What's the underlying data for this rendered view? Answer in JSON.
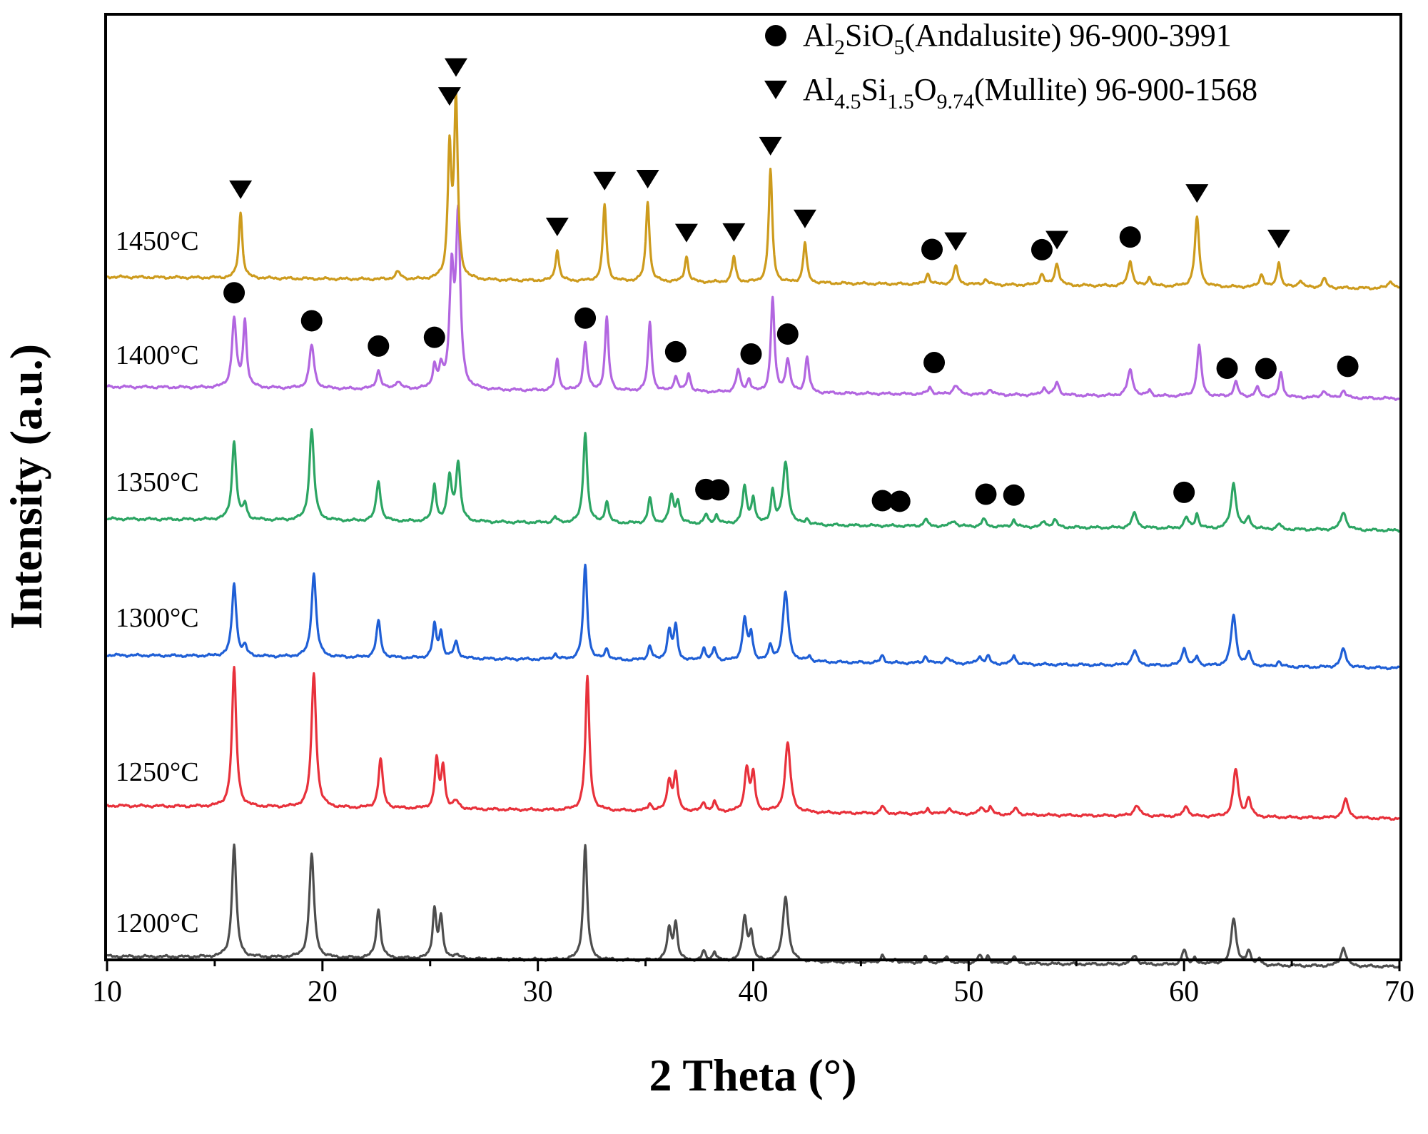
{
  "chart_data": {
    "type": "line",
    "title": "",
    "xlabel": "2 Theta (°)",
    "ylabel": "Intensity (a.u.)",
    "xlim": [
      10,
      70
    ],
    "xticks": [
      10,
      20,
      30,
      40,
      50,
      60,
      70
    ],
    "grid": false,
    "legend_position": "top-right",
    "legend": [
      {
        "marker": "circle",
        "parts": [
          [
            "Al",
            ""
          ],
          [
            "2",
            "sub"
          ],
          [
            "SiO",
            ""
          ],
          [
            "5",
            "sub"
          ],
          [
            "(Andalusite) 96-900-3991",
            ""
          ]
        ]
      },
      {
        "marker": "triangle-down",
        "parts": [
          [
            "Al",
            ""
          ],
          [
            "4.5",
            "sub"
          ],
          [
            "Si",
            ""
          ],
          [
            "1.5",
            "sub"
          ],
          [
            "O",
            ""
          ],
          [
            "9.74",
            "sub"
          ],
          [
            "(Mullite) 96-900-1568",
            ""
          ]
        ]
      }
    ],
    "series": [
      {
        "name": "1200°C",
        "color": "#4d4d4d",
        "offset": 0,
        "peaks": [
          [
            15.9,
            0.62,
            0.12
          ],
          [
            19.5,
            0.57,
            0.13
          ],
          [
            22.6,
            0.27,
            0.12
          ],
          [
            25.2,
            0.27,
            0.1
          ],
          [
            25.5,
            0.22,
            0.1
          ],
          [
            26.2,
            0.02,
            0.2
          ],
          [
            32.2,
            0.63,
            0.11
          ],
          [
            36.1,
            0.17,
            0.12
          ],
          [
            36.4,
            0.2,
            0.1
          ],
          [
            37.7,
            0.05,
            0.1
          ],
          [
            38.2,
            0.05,
            0.1
          ],
          [
            39.6,
            0.24,
            0.12
          ],
          [
            39.9,
            0.15,
            0.1
          ],
          [
            41.5,
            0.36,
            0.15
          ],
          [
            46.0,
            0.04,
            0.1
          ],
          [
            46.6,
            0.02,
            0.1
          ],
          [
            48.0,
            0.03,
            0.1
          ],
          [
            49.0,
            0.03,
            0.15
          ],
          [
            50.5,
            0.04,
            0.12
          ],
          [
            50.9,
            0.04,
            0.1
          ],
          [
            52.1,
            0.04,
            0.1
          ],
          [
            57.7,
            0.05,
            0.15
          ],
          [
            60.0,
            0.08,
            0.12
          ],
          [
            60.5,
            0.04,
            0.1
          ],
          [
            61.3,
            0.02,
            0.1
          ],
          [
            62.3,
            0.26,
            0.14
          ],
          [
            63.0,
            0.08,
            0.12
          ],
          [
            63.5,
            0.03,
            0.1
          ],
          [
            67.4,
            0.1,
            0.15
          ]
        ]
      },
      {
        "name": "1250°C",
        "color": "#e8313b",
        "offset": 1,
        "peaks": [
          [
            15.9,
            0.76,
            0.12
          ],
          [
            19.6,
            0.74,
            0.13
          ],
          [
            22.7,
            0.27,
            0.12
          ],
          [
            25.3,
            0.27,
            0.1
          ],
          [
            25.6,
            0.23,
            0.1
          ],
          [
            26.2,
            0.04,
            0.15
          ],
          [
            32.3,
            0.73,
            0.11
          ],
          [
            35.2,
            0.04,
            0.1
          ],
          [
            36.1,
            0.17,
            0.12
          ],
          [
            36.4,
            0.2,
            0.1
          ],
          [
            37.7,
            0.05,
            0.1
          ],
          [
            38.2,
            0.05,
            0.1
          ],
          [
            39.7,
            0.24,
            0.12
          ],
          [
            40.0,
            0.2,
            0.1
          ],
          [
            41.6,
            0.38,
            0.15
          ],
          [
            46.0,
            0.04,
            0.1
          ],
          [
            48.1,
            0.03,
            0.1
          ],
          [
            49.1,
            0.03,
            0.15
          ],
          [
            50.6,
            0.04,
            0.12
          ],
          [
            51.0,
            0.04,
            0.1
          ],
          [
            52.2,
            0.04,
            0.1
          ],
          [
            57.8,
            0.06,
            0.15
          ],
          [
            60.1,
            0.06,
            0.12
          ],
          [
            62.4,
            0.26,
            0.14
          ],
          [
            63.0,
            0.1,
            0.12
          ],
          [
            67.5,
            0.1,
            0.15
          ]
        ]
      },
      {
        "name": "1300°C",
        "color": "#1f5fd6",
        "offset": 2,
        "peaks": [
          [
            15.9,
            0.4,
            0.12
          ],
          [
            16.4,
            0.05,
            0.1
          ],
          [
            19.6,
            0.46,
            0.13
          ],
          [
            22.6,
            0.2,
            0.12
          ],
          [
            25.2,
            0.18,
            0.1
          ],
          [
            25.5,
            0.14,
            0.1
          ],
          [
            26.2,
            0.09,
            0.12
          ],
          [
            30.8,
            0.03,
            0.1
          ],
          [
            32.2,
            0.52,
            0.11
          ],
          [
            33.2,
            0.06,
            0.1
          ],
          [
            35.2,
            0.08,
            0.1
          ],
          [
            36.1,
            0.16,
            0.12
          ],
          [
            36.4,
            0.18,
            0.1
          ],
          [
            37.7,
            0.07,
            0.1
          ],
          [
            38.2,
            0.07,
            0.1
          ],
          [
            39.6,
            0.23,
            0.12
          ],
          [
            39.9,
            0.14,
            0.1
          ],
          [
            40.8,
            0.08,
            0.1
          ],
          [
            41.5,
            0.38,
            0.15
          ],
          [
            42.6,
            0.03,
            0.1
          ],
          [
            46.0,
            0.04,
            0.1
          ],
          [
            48.0,
            0.04,
            0.1
          ],
          [
            49.0,
            0.03,
            0.15
          ],
          [
            50.5,
            0.04,
            0.12
          ],
          [
            50.9,
            0.04,
            0.1
          ],
          [
            52.1,
            0.05,
            0.1
          ],
          [
            57.7,
            0.08,
            0.15
          ],
          [
            60.0,
            0.1,
            0.12
          ],
          [
            60.6,
            0.05,
            0.1
          ],
          [
            62.3,
            0.28,
            0.14
          ],
          [
            63.0,
            0.07,
            0.12
          ],
          [
            64.4,
            0.03,
            0.1
          ],
          [
            67.4,
            0.1,
            0.15
          ]
        ]
      },
      {
        "name": "1350°C",
        "color": "#2ca563",
        "offset": 3,
        "peaks": [
          [
            15.9,
            0.43,
            0.12
          ],
          [
            16.4,
            0.08,
            0.1
          ],
          [
            19.5,
            0.5,
            0.13
          ],
          [
            22.6,
            0.22,
            0.12
          ],
          [
            25.2,
            0.2,
            0.1
          ],
          [
            25.9,
            0.24,
            0.12
          ],
          [
            26.3,
            0.32,
            0.12
          ],
          [
            30.8,
            0.03,
            0.1
          ],
          [
            32.2,
            0.5,
            0.11
          ],
          [
            33.2,
            0.12,
            0.1
          ],
          [
            35.2,
            0.14,
            0.1
          ],
          [
            36.2,
            0.15,
            0.12
          ],
          [
            36.5,
            0.12,
            0.1
          ],
          [
            37.8,
            0.05,
            0.1
          ],
          [
            38.3,
            0.05,
            0.1
          ],
          [
            39.6,
            0.2,
            0.12
          ],
          [
            40.0,
            0.14,
            0.1
          ],
          [
            40.9,
            0.18,
            0.1
          ],
          [
            41.5,
            0.34,
            0.15
          ],
          [
            42.5,
            0.03,
            0.1
          ],
          [
            48.0,
            0.04,
            0.1
          ],
          [
            49.3,
            0.03,
            0.15
          ],
          [
            50.7,
            0.04,
            0.12
          ],
          [
            52.1,
            0.04,
            0.1
          ],
          [
            53.5,
            0.03,
            0.12
          ],
          [
            54.0,
            0.04,
            0.12
          ],
          [
            57.7,
            0.08,
            0.15
          ],
          [
            60.1,
            0.06,
            0.12
          ],
          [
            60.6,
            0.08,
            0.1
          ],
          [
            62.3,
            0.25,
            0.14
          ],
          [
            63.0,
            0.06,
            0.12
          ],
          [
            64.4,
            0.03,
            0.1
          ],
          [
            67.4,
            0.1,
            0.15
          ]
        ]
      },
      {
        "name": "1400°C",
        "color": "#b266e0",
        "offset": 4,
        "peaks": [
          [
            15.9,
            0.38,
            0.12
          ],
          [
            16.4,
            0.36,
            0.1
          ],
          [
            19.5,
            0.24,
            0.13
          ],
          [
            22.6,
            0.1,
            0.12
          ],
          [
            23.5,
            0.04,
            0.15
          ],
          [
            25.2,
            0.12,
            0.1
          ],
          [
            25.5,
            0.1,
            0.1
          ],
          [
            26.0,
            0.62,
            0.12
          ],
          [
            26.3,
            0.92,
            0.12
          ],
          [
            30.9,
            0.17,
            0.1
          ],
          [
            32.2,
            0.26,
            0.11
          ],
          [
            33.2,
            0.4,
            0.1
          ],
          [
            35.2,
            0.38,
            0.1
          ],
          [
            36.4,
            0.08,
            0.12
          ],
          [
            37.0,
            0.1,
            0.1
          ],
          [
            39.3,
            0.12,
            0.12
          ],
          [
            39.8,
            0.07,
            0.1
          ],
          [
            40.9,
            0.52,
            0.1
          ],
          [
            41.6,
            0.18,
            0.12
          ],
          [
            42.5,
            0.2,
            0.1
          ],
          [
            48.2,
            0.04,
            0.1
          ],
          [
            49.4,
            0.05,
            0.15
          ],
          [
            51.0,
            0.03,
            0.12
          ],
          [
            53.5,
            0.04,
            0.12
          ],
          [
            54.1,
            0.07,
            0.12
          ],
          [
            57.5,
            0.14,
            0.15
          ],
          [
            58.4,
            0.03,
            0.1
          ],
          [
            60.7,
            0.28,
            0.12
          ],
          [
            62.4,
            0.08,
            0.12
          ],
          [
            63.4,
            0.05,
            0.12
          ],
          [
            64.5,
            0.14,
            0.1
          ],
          [
            66.5,
            0.04,
            0.12
          ],
          [
            67.4,
            0.04,
            0.12
          ]
        ]
      },
      {
        "name": "1450°C",
        "color": "#cd9b1d",
        "offset": 5,
        "peaks": [
          [
            16.2,
            0.36,
            0.1
          ],
          [
            23.5,
            0.04,
            0.15
          ],
          [
            25.9,
            0.7,
            0.1
          ],
          [
            26.2,
            0.97,
            0.1
          ],
          [
            30.9,
            0.17,
            0.1
          ],
          [
            33.1,
            0.42,
            0.1
          ],
          [
            35.1,
            0.44,
            0.1
          ],
          [
            36.9,
            0.14,
            0.1
          ],
          [
            39.1,
            0.14,
            0.1
          ],
          [
            40.8,
            0.62,
            0.1
          ],
          [
            42.4,
            0.22,
            0.1
          ],
          [
            48.1,
            0.06,
            0.1
          ],
          [
            49.4,
            0.1,
            0.12
          ],
          [
            50.8,
            0.03,
            0.12
          ],
          [
            53.4,
            0.06,
            0.12
          ],
          [
            54.1,
            0.12,
            0.12
          ],
          [
            57.5,
            0.14,
            0.12
          ],
          [
            58.4,
            0.05,
            0.1
          ],
          [
            60.6,
            0.38,
            0.12
          ],
          [
            63.6,
            0.07,
            0.12
          ],
          [
            64.4,
            0.14,
            0.1
          ],
          [
            65.4,
            0.04,
            0.12
          ],
          [
            66.5,
            0.05,
            0.12
          ],
          [
            69.6,
            0.04,
            0.15
          ]
        ]
      }
    ],
    "annotations": [
      {
        "series": "1450°C",
        "marker": "triangle-down",
        "x": [
          16.2,
          25.9,
          26.2,
          30.9,
          33.1,
          35.1,
          36.9,
          39.1,
          40.8,
          42.4,
          49.4,
          54.1,
          60.6,
          64.4
        ]
      },
      {
        "series": "1450°C",
        "marker": "circle",
        "x": [
          48.3,
          53.4,
          57.5
        ]
      },
      {
        "series": "1400°C",
        "marker": "circle",
        "x": [
          15.9,
          19.5,
          22.6,
          25.2,
          32.2,
          36.4,
          39.9,
          41.6,
          48.4,
          62.0,
          63.8,
          67.6
        ]
      },
      {
        "series": "1350°C",
        "marker": "circle",
        "x": [
          37.8,
          38.4,
          46.0,
          46.8,
          50.8,
          52.1,
          60.0
        ]
      }
    ]
  }
}
